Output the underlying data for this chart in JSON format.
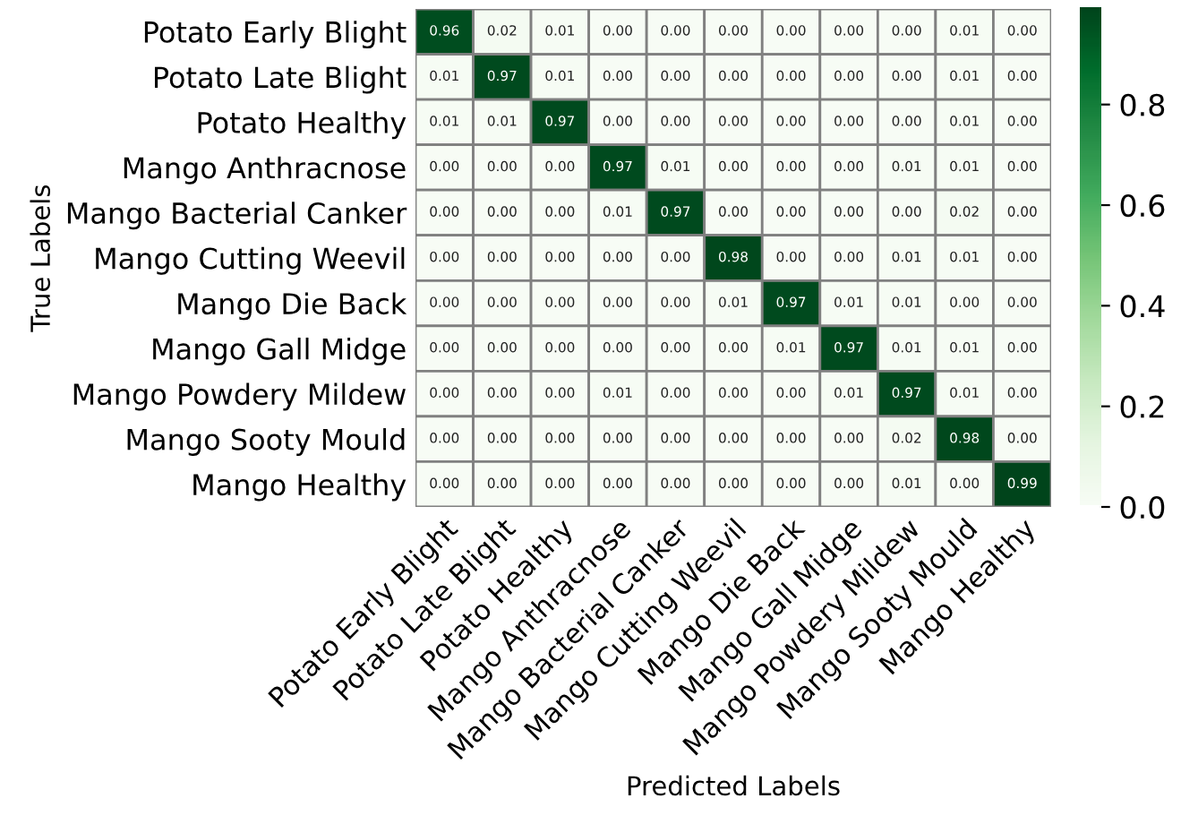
{
  "chart_data": {
    "type": "heatmap",
    "xlabel": "Predicted Labels",
    "ylabel": "True Labels",
    "categories": [
      "Potato Early Blight",
      "Potato Late Blight",
      "Potato Healthy",
      "Mango Anthracnose",
      "Mango Bacterial Canker",
      "Mango Cutting Weevil",
      "Mango Die Back",
      "Mango Gall Midge",
      "Mango Powdery Mildew",
      "Mango Sooty Mould",
      "Mango Healthy"
    ],
    "y_categories": [
      "Potato Early Blight",
      "Potato Late Blight",
      "Potato Healthy",
      "Mango Anthracnose",
      "Mango Bacterial Canker",
      "Mango Cutting Weevil",
      "Mango Die Back",
      "Mango Gall Midge",
      "Mango Powdery Mildew",
      "Mango Sooty Mould",
      "Mango Healthy"
    ],
    "cells": [
      [
        0.96,
        0.02,
        0.01,
        0,
        0,
        0,
        0,
        0,
        0,
        0.01,
        0
      ],
      [
        0.01,
        0.97,
        0.01,
        0,
        0,
        0,
        0,
        0,
        0,
        0.01,
        0
      ],
      [
        0.01,
        0.01,
        0.97,
        0,
        0,
        0,
        0,
        0,
        0,
        0.01,
        0
      ],
      [
        0,
        0,
        0,
        0.97,
        0.01,
        0,
        0,
        0,
        0.01,
        0.01,
        0
      ],
      [
        0,
        0,
        0,
        0.01,
        0.97,
        0,
        0,
        0,
        0,
        0.02,
        0
      ],
      [
        0,
        0,
        0,
        0,
        0,
        0.98,
        0,
        0,
        0.01,
        0.01,
        0
      ],
      [
        0,
        0,
        0,
        0,
        0,
        0.01,
        0.97,
        0.01,
        0.01,
        0,
        0
      ],
      [
        0,
        0,
        0,
        0,
        0,
        0,
        0.01,
        0.97,
        0.01,
        0.01,
        0
      ],
      [
        0,
        0,
        0,
        0.01,
        0,
        0,
        0,
        0.01,
        0.97,
        0.01,
        0
      ],
      [
        0,
        0,
        0,
        0,
        0,
        0,
        0,
        0,
        0.02,
        0.98,
        0
      ],
      [
        0,
        0,
        0,
        0,
        0,
        0,
        0,
        0,
        0.01,
        0,
        0.99
      ]
    ],
    "cell_labels": [
      [
        "0.96",
        "0.02",
        "0.01",
        "0.00",
        "0.00",
        "0.00",
        "0.00",
        "0.00",
        "0.00",
        "0.01",
        "0.00"
      ],
      [
        "0.01",
        "0.97",
        "0.01",
        "0.00",
        "0.00",
        "0.00",
        "0.00",
        "0.00",
        "0.00",
        "0.01",
        "0.00"
      ],
      [
        "0.01",
        "0.01",
        "0.97",
        "0.00",
        "0.00",
        "0.00",
        "0.00",
        "0.00",
        "0.00",
        "0.01",
        "0.00"
      ],
      [
        "0.00",
        "0.00",
        "0.00",
        "0.97",
        "0.01",
        "0.00",
        "0.00",
        "0.00",
        "0.01",
        "0.01",
        "0.00"
      ],
      [
        "0.00",
        "0.00",
        "0.00",
        "0.01",
        "0.97",
        "0.00",
        "0.00",
        "0.00",
        "0.00",
        "0.02",
        "0.00"
      ],
      [
        "0.00",
        "0.00",
        "0.00",
        "0.00",
        "0.00",
        "0.98",
        "0.00",
        "0.00",
        "0.01",
        "0.01",
        "0.00"
      ],
      [
        "0.00",
        "0.00",
        "0.00",
        "0.00",
        "0.00",
        "0.01",
        "0.97",
        "0.01",
        "0.01",
        "0.00",
        "0.00"
      ],
      [
        "0.00",
        "0.00",
        "0.00",
        "0.00",
        "0.00",
        "0.00",
        "0.01",
        "0.97",
        "0.01",
        "0.01",
        "0.00"
      ],
      [
        "0.00",
        "0.00",
        "0.00",
        "0.01",
        "0.00",
        "0.00",
        "0.00",
        "0.01",
        "0.97",
        "0.01",
        "0.00"
      ],
      [
        "0.00",
        "0.00",
        "0.00",
        "0.00",
        "0.00",
        "0.00",
        "0.00",
        "0.00",
        "0.02",
        "0.98",
        "0.00"
      ],
      [
        "0.00",
        "0.00",
        "0.00",
        "0.00",
        "0.00",
        "0.00",
        "0.00",
        "0.00",
        "0.01",
        "0.00",
        "0.99"
      ]
    ],
    "clim": [
      0,
      0.99
    ],
    "cticks": [
      {
        "value": 0,
        "label": "0.0"
      },
      0.2,
      0.4,
      0.6,
      0.8
    ]
  }
}
